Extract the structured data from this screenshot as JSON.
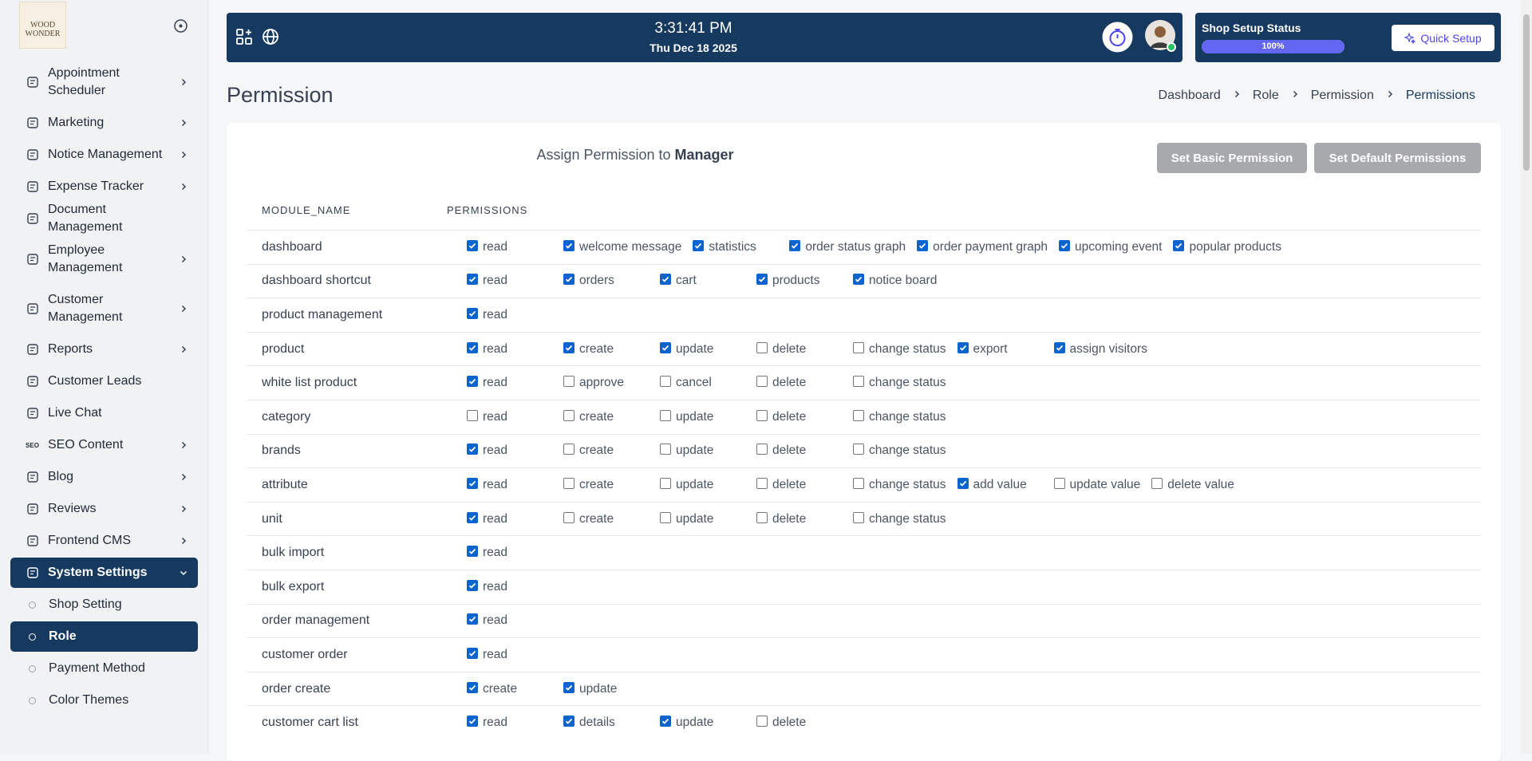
{
  "sidebar": {
    "logo": "WOOD WONDER",
    "items": [
      {
        "label": "Appointment Scheduler",
        "chevron": true,
        "double": true
      },
      {
        "label": "Marketing",
        "chevron": true
      },
      {
        "label": "Notice Management",
        "chevron": true
      },
      {
        "label": "Expense Tracker",
        "chevron": true
      },
      {
        "label": "Document Management",
        "chevron": false
      },
      {
        "label": "Employee Management",
        "chevron": true,
        "double": true
      },
      {
        "label": "Customer Management",
        "chevron": true,
        "double": true
      },
      {
        "label": "Reports",
        "chevron": true
      },
      {
        "label": "Customer Leads",
        "chevron": false
      },
      {
        "label": "Live Chat",
        "chevron": false
      },
      {
        "label": "SEO Content",
        "chevron": true,
        "icon_text": "SEO"
      },
      {
        "label": "Blog",
        "chevron": true
      },
      {
        "label": "Reviews",
        "chevron": true
      },
      {
        "label": "Frontend CMS",
        "chevron": true
      },
      {
        "label": "System Settings",
        "chevron": true,
        "active": true,
        "expanded": true
      }
    ],
    "subitems": [
      {
        "label": "Shop Setting",
        "active": false
      },
      {
        "label": "Role",
        "active": true
      },
      {
        "label": "Payment Method",
        "active": false
      },
      {
        "label": "Color Themes",
        "active": false
      }
    ]
  },
  "header": {
    "time": "3:31:41 PM",
    "date": "Thu Dec 18 2025",
    "setup_title": "Shop Setup Status",
    "setup_progress": {
      "value": 100,
      "label": "100%"
    },
    "quick_setup": "Quick Setup"
  },
  "page": {
    "title": "Permission",
    "breadcrumbs": [
      "Dashboard",
      "Role",
      "Permission",
      "Permissions"
    ]
  },
  "card": {
    "assign_text": "Assign Permission to",
    "role": "Manager",
    "buttons": [
      "Set Basic Permission",
      "Set Default Permissions"
    ]
  },
  "table": {
    "headers": [
      "MODULE_NAME",
      "PERMISSIONS"
    ],
    "rows": [
      {
        "module": "dashboard",
        "permissions": [
          {
            "label": "read",
            "checked": true
          },
          {
            "label": "welcome message",
            "checked": true
          },
          {
            "label": "statistics",
            "checked": true
          },
          {
            "label": "order status graph",
            "checked": true
          },
          {
            "label": "order payment graph",
            "checked": true
          },
          {
            "label": "upcoming event",
            "checked": true
          },
          {
            "label": "popular products",
            "checked": true
          }
        ]
      },
      {
        "module": "dashboard shortcut",
        "permissions": [
          {
            "label": "read",
            "checked": true
          },
          {
            "label": "orders",
            "checked": true
          },
          {
            "label": "cart",
            "checked": true
          },
          {
            "label": "products",
            "checked": true
          },
          {
            "label": "notice board",
            "checked": true
          }
        ]
      },
      {
        "module": "product management",
        "permissions": [
          {
            "label": "read",
            "checked": true
          }
        ]
      },
      {
        "module": "product",
        "permissions": [
          {
            "label": "read",
            "checked": true
          },
          {
            "label": "create",
            "checked": true
          },
          {
            "label": "update",
            "checked": true
          },
          {
            "label": "delete",
            "checked": false
          },
          {
            "label": "change status",
            "checked": false
          },
          {
            "label": "export",
            "checked": true
          },
          {
            "label": "assign visitors",
            "checked": true
          }
        ]
      },
      {
        "module": "white list product",
        "permissions": [
          {
            "label": "read",
            "checked": true
          },
          {
            "label": "approve",
            "checked": false
          },
          {
            "label": "cancel",
            "checked": false
          },
          {
            "label": "delete",
            "checked": false
          },
          {
            "label": "change status",
            "checked": false
          }
        ]
      },
      {
        "module": "category",
        "permissions": [
          {
            "label": "read",
            "checked": false
          },
          {
            "label": "create",
            "checked": false
          },
          {
            "label": "update",
            "checked": false
          },
          {
            "label": "delete",
            "checked": false
          },
          {
            "label": "change status",
            "checked": false
          }
        ]
      },
      {
        "module": "brands",
        "permissions": [
          {
            "label": "read",
            "checked": true
          },
          {
            "label": "create",
            "checked": false
          },
          {
            "label": "update",
            "checked": false
          },
          {
            "label": "delete",
            "checked": false
          },
          {
            "label": "change status",
            "checked": false
          }
        ]
      },
      {
        "module": "attribute",
        "permissions": [
          {
            "label": "read",
            "checked": true
          },
          {
            "label": "create",
            "checked": false
          },
          {
            "label": "update",
            "checked": false
          },
          {
            "label": "delete",
            "checked": false
          },
          {
            "label": "change status",
            "checked": false
          },
          {
            "label": "add value",
            "checked": true
          },
          {
            "label": "update value",
            "checked": false
          },
          {
            "label": "delete value",
            "checked": false
          }
        ]
      },
      {
        "module": "unit",
        "permissions": [
          {
            "label": "read",
            "checked": true
          },
          {
            "label": "create",
            "checked": false
          },
          {
            "label": "update",
            "checked": false
          },
          {
            "label": "delete",
            "checked": false
          },
          {
            "label": "change status",
            "checked": false
          }
        ]
      },
      {
        "module": "bulk import",
        "permissions": [
          {
            "label": "read",
            "checked": true
          }
        ]
      },
      {
        "module": "bulk export",
        "permissions": [
          {
            "label": "read",
            "checked": true
          }
        ]
      },
      {
        "module": "order management",
        "permissions": [
          {
            "label": "read",
            "checked": true
          }
        ]
      },
      {
        "module": "customer order",
        "permissions": [
          {
            "label": "read",
            "checked": true
          }
        ]
      },
      {
        "module": "order create",
        "permissions": [
          {
            "label": "create",
            "checked": true
          },
          {
            "label": "update",
            "checked": true
          }
        ]
      },
      {
        "module": "customer cart list",
        "permissions": [
          {
            "label": "read",
            "checked": true
          },
          {
            "label": "details",
            "checked": true
          },
          {
            "label": "update",
            "checked": true
          },
          {
            "label": "delete",
            "checked": false
          }
        ]
      }
    ]
  }
}
